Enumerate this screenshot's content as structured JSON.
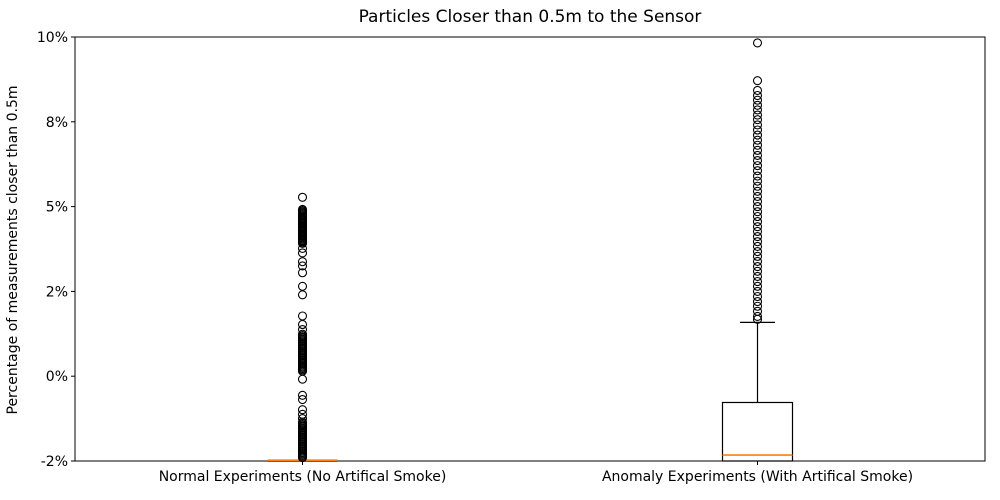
{
  "chart_data": {
    "type": "boxplot",
    "title": "Particles Closer than 0.5m to the Sensor",
    "ylabel": "Percentage of measurements closer than 0.5m",
    "xlabel": "",
    "grid": false,
    "y_ticks": {
      "values": [
        -2,
        0,
        2,
        5,
        8,
        10
      ],
      "labels": [
        "-2%",
        "0%",
        "2%",
        "5%",
        "8%",
        "10%"
      ]
    },
    "ylim_labels": [
      "-2%",
      "10%"
    ],
    "categories": [
      "Normal Experiments (No Artifical Smoke)",
      "Anomaly Experiments (With Artifical Smoke)"
    ],
    "colors": {
      "box_line": "#000000",
      "median_line": "#ff7f0e",
      "flier_edge": "#000000",
      "background": "#ffffff"
    },
    "series": [
      {
        "name": "Normal Experiments (No Artifical Smoke)",
        "median": -1.98,
        "q1": -2.0,
        "q3": -2.0,
        "whisker_low": -2.0,
        "whisker_high": -2.0,
        "fliers": [
          5.33,
          4.9,
          4.86,
          4.82,
          4.78,
          4.74,
          4.7,
          4.66,
          4.62,
          4.58,
          4.54,
          4.5,
          4.46,
          4.42,
          4.38,
          4.34,
          4.3,
          4.26,
          4.22,
          4.18,
          4.14,
          4.1,
          4.06,
          4.02,
          3.98,
          3.94,
          3.9,
          3.86,
          3.82,
          3.78,
          3.74,
          3.7,
          3.52,
          3.36,
          3.05,
          2.9,
          2.66,
          2.18,
          1.92,
          1.42,
          1.22,
          1.1,
          0.99,
          0.96,
          0.93,
          0.9,
          0.87,
          0.84,
          0.81,
          0.78,
          0.75,
          0.72,
          0.69,
          0.66,
          0.63,
          0.6,
          0.57,
          0.54,
          0.51,
          0.48,
          0.45,
          0.42,
          0.39,
          0.36,
          0.33,
          0.3,
          0.27,
          0.24,
          0.21,
          0.18,
          0.15,
          0.12,
          -0.07,
          -0.45,
          -0.55,
          -0.79,
          -0.9,
          -1.0,
          -1.08,
          -1.11,
          -1.14,
          -1.17,
          -1.2,
          -1.23,
          -1.26,
          -1.29,
          -1.32,
          -1.35,
          -1.38,
          -1.41,
          -1.44,
          -1.47,
          -1.5,
          -1.53,
          -1.56,
          -1.59,
          -1.62,
          -1.65,
          -1.68,
          -1.71,
          -1.74,
          -1.77,
          -1.8,
          -1.83,
          -1.86,
          -1.89,
          -1.92
        ]
      },
      {
        "name": "Anomaly Experiments (With Artifical Smoke)",
        "median": -1.86,
        "q1": -2.0,
        "q3": -0.62,
        "whisker_low": -2.0,
        "whisker_high": 1.27,
        "fliers": [
          9.86,
          8.97,
          8.74,
          8.62,
          8.51,
          8.39,
          8.28,
          8.16,
          8.05,
          7.89,
          7.71,
          7.53,
          7.35,
          7.17,
          6.99,
          6.81,
          6.63,
          6.45,
          6.27,
          6.08,
          5.9,
          5.72,
          5.54,
          5.36,
          5.18,
          5.0,
          4.82,
          4.65,
          4.47,
          4.29,
          4.12,
          3.94,
          3.76,
          3.59,
          3.41,
          3.24,
          3.06,
          2.88,
          2.71,
          2.53,
          2.35,
          2.18,
          2.0,
          1.88,
          1.76,
          1.65,
          1.53,
          1.41,
          1.34
        ]
      }
    ]
  }
}
